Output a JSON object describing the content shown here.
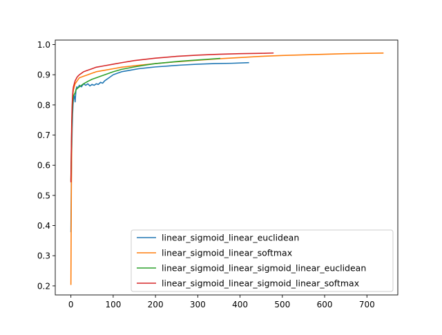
{
  "chart_data": {
    "type": "line",
    "title": "",
    "xlabel": "",
    "ylabel": "",
    "xlim": [
      -37,
      773
    ],
    "ylim": [
      0.17,
      1.015
    ],
    "xticks": [
      0,
      100,
      200,
      300,
      400,
      500,
      600,
      700
    ],
    "yticks": [
      0.2,
      0.3,
      0.4,
      0.5,
      0.6,
      0.7,
      0.8,
      0.9,
      1.0
    ],
    "xtick_labels": [
      "0",
      "100",
      "200",
      "300",
      "400",
      "500",
      "600",
      "700"
    ],
    "ytick_labels": [
      "0.2",
      "0.3",
      "0.4",
      "0.5",
      "0.6",
      "0.7",
      "0.8",
      "0.9",
      "1.0"
    ],
    "grid": false,
    "legend_position": "lower-right",
    "series": [
      {
        "name": "linear_sigmoid_linear_euclidean",
        "color": "#1f77b4",
        "x": [
          0,
          1,
          2,
          3,
          4,
          5,
          6,
          8,
          10,
          12,
          14,
          16,
          18,
          20,
          25,
          30,
          35,
          40,
          45,
          50,
          55,
          60,
          65,
          70,
          75,
          80,
          90,
          100,
          110,
          120,
          140,
          160,
          180,
          200,
          230,
          260,
          300,
          340,
          380,
          420
        ],
        "y": [
          0.38,
          0.55,
          0.65,
          0.72,
          0.77,
          0.8,
          0.82,
          0.83,
          0.81,
          0.85,
          0.86,
          0.855,
          0.86,
          0.865,
          0.86,
          0.87,
          0.865,
          0.87,
          0.863,
          0.868,
          0.865,
          0.87,
          0.868,
          0.875,
          0.872,
          0.88,
          0.89,
          0.9,
          0.905,
          0.91,
          0.915,
          0.92,
          0.923,
          0.926,
          0.929,
          0.932,
          0.935,
          0.937,
          0.938,
          0.94
        ]
      },
      {
        "name": "linear_sigmoid_linear_softmax",
        "color": "#ff7f0e",
        "x": [
          0,
          1,
          2,
          3,
          4,
          5,
          6,
          8,
          10,
          15,
          20,
          30,
          40,
          50,
          60,
          80,
          100,
          120,
          150,
          200,
          250,
          300,
          350,
          400,
          450,
          500,
          550,
          600,
          650,
          700,
          738
        ],
        "y": [
          0.205,
          0.5,
          0.7,
          0.78,
          0.82,
          0.84,
          0.85,
          0.86,
          0.87,
          0.88,
          0.89,
          0.895,
          0.9,
          0.905,
          0.91,
          0.915,
          0.92,
          0.925,
          0.93,
          0.937,
          0.943,
          0.948,
          0.953,
          0.957,
          0.961,
          0.964,
          0.966,
          0.968,
          0.97,
          0.971,
          0.972
        ]
      },
      {
        "name": "linear_sigmoid_linear_sigmoid_linear_euclidean",
        "color": "#2ca02c",
        "x": [
          0,
          1,
          2,
          3,
          4,
          5,
          6,
          8,
          10,
          12,
          15,
          20,
          25,
          30,
          40,
          50,
          60,
          70,
          80,
          100,
          120,
          150,
          180,
          200,
          230,
          260,
          300,
          330,
          352
        ],
        "y": [
          0.55,
          0.65,
          0.72,
          0.77,
          0.8,
          0.82,
          0.83,
          0.835,
          0.84,
          0.85,
          0.855,
          0.86,
          0.865,
          0.87,
          0.878,
          0.885,
          0.89,
          0.895,
          0.9,
          0.91,
          0.918,
          0.926,
          0.933,
          0.937,
          0.941,
          0.945,
          0.949,
          0.952,
          0.954
        ]
      },
      {
        "name": "linear_sigmoid_linear_sigmoid_linear_softmax",
        "color": "#d62728",
        "x": [
          0,
          1,
          2,
          3,
          4,
          5,
          6,
          8,
          10,
          12,
          15,
          20,
          25,
          30,
          40,
          50,
          60,
          80,
          100,
          120,
          150,
          200,
          250,
          300,
          350,
          400,
          450,
          478
        ],
        "y": [
          0.545,
          0.65,
          0.75,
          0.8,
          0.83,
          0.85,
          0.86,
          0.87,
          0.88,
          0.885,
          0.893,
          0.9,
          0.905,
          0.91,
          0.915,
          0.92,
          0.925,
          0.93,
          0.935,
          0.94,
          0.947,
          0.955,
          0.961,
          0.965,
          0.968,
          0.97,
          0.971,
          0.972
        ]
      }
    ]
  }
}
